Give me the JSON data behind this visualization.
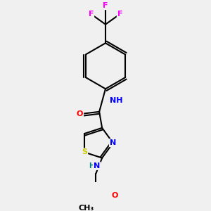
{
  "background_color": "#f0f0f0",
  "bond_color": "#000000",
  "bond_width": 1.5,
  "atom_colors": {
    "C": "#000000",
    "N": "#0000ff",
    "O": "#ff0000",
    "S": "#cccc00",
    "F": "#ff00ff",
    "H": "#008080"
  },
  "font_size": 8
}
